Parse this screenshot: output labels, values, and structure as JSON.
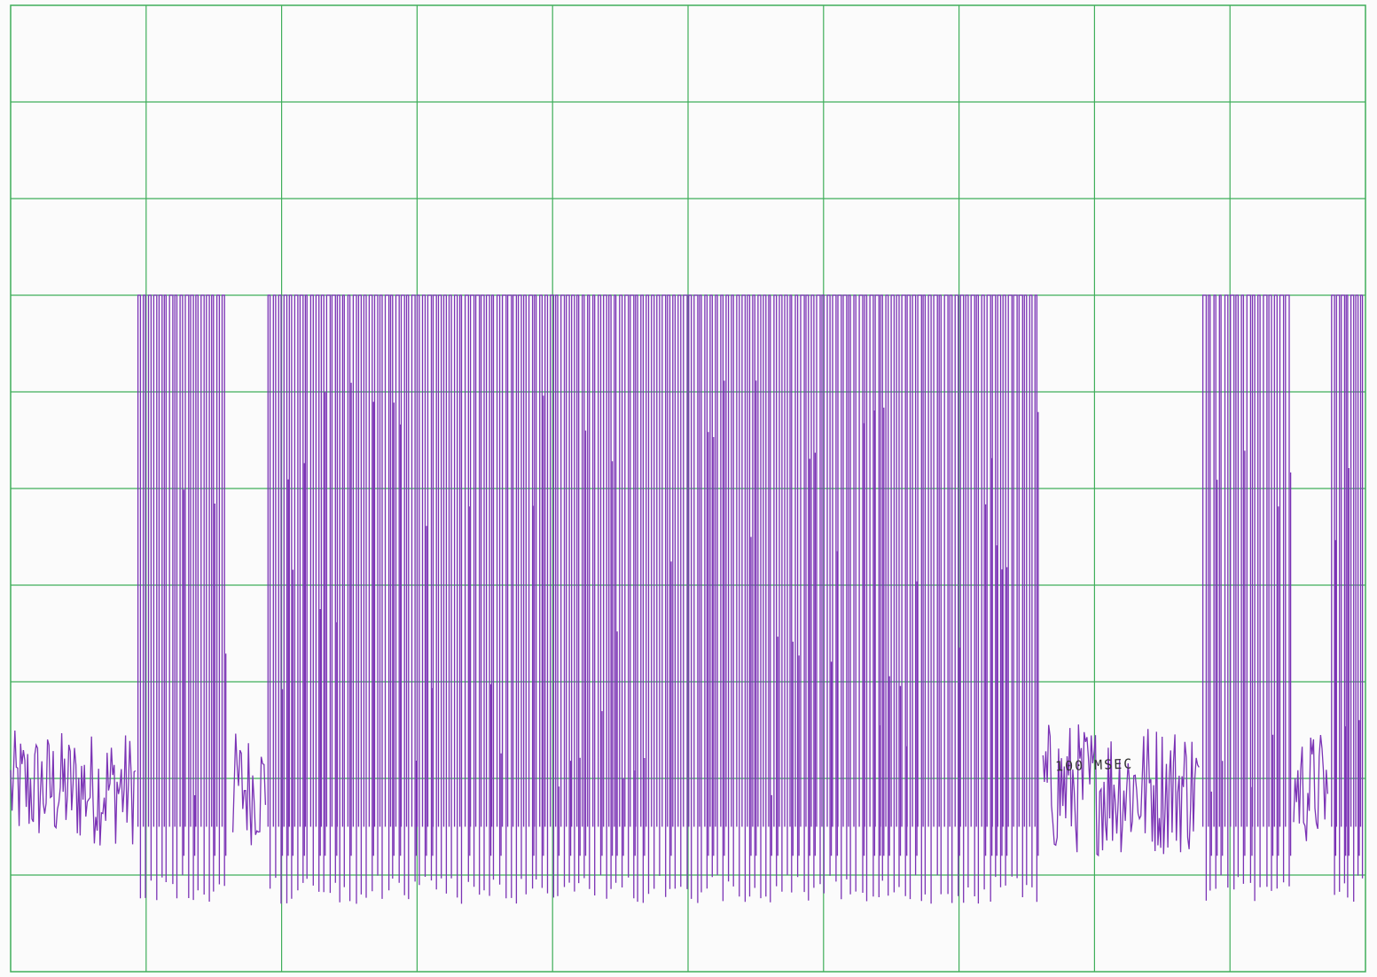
{
  "chart_data": {
    "type": "line",
    "title": "",
    "xlabel": "",
    "ylabel": "",
    "grid": true,
    "grid_divisions": {
      "x": 10,
      "y": 10
    },
    "xlim": [
      0,
      10
    ],
    "ylim": [
      0,
      10
    ],
    "annotations": [
      {
        "text": "100 MSEC"
      }
    ],
    "series": [
      {
        "color": "#7b33b5",
        "segments": [
          {
            "kind": "noise",
            "x": [
              0.0,
              0.93
            ],
            "level": 0.9,
            "spread": 0.6
          },
          {
            "kind": "pulses",
            "x": [
              0.94,
              1.6
            ],
            "high": 6.0,
            "low": 0.0,
            "count": 17
          },
          {
            "kind": "noise",
            "x": [
              1.64,
              1.89
            ],
            "level": 0.9,
            "spread": 0.6
          },
          {
            "kind": "pulses",
            "x": [
              1.9,
              7.6
            ],
            "high": 6.0,
            "low": 0.0,
            "count": 145
          },
          {
            "kind": "noise",
            "x": [
              7.62,
              8.78
            ],
            "level": 0.9,
            "spread": 0.7
          },
          {
            "kind": "pulses",
            "x": [
              8.8,
              9.45
            ],
            "high": 6.0,
            "low": 0.0,
            "count": 16
          },
          {
            "kind": "noise",
            "x": [
              9.47,
              9.73
            ],
            "level": 0.9,
            "spread": 0.6
          },
          {
            "kind": "pulses",
            "x": [
              9.75,
              10.0
            ],
            "high": 6.0,
            "low": 0.0,
            "count": 7
          }
        ]
      }
    ]
  },
  "colors": {
    "grid": "#3fae5a",
    "paper": "#fbfbfb",
    "trace": "#7b33b5",
    "border": "#3fae5a"
  }
}
